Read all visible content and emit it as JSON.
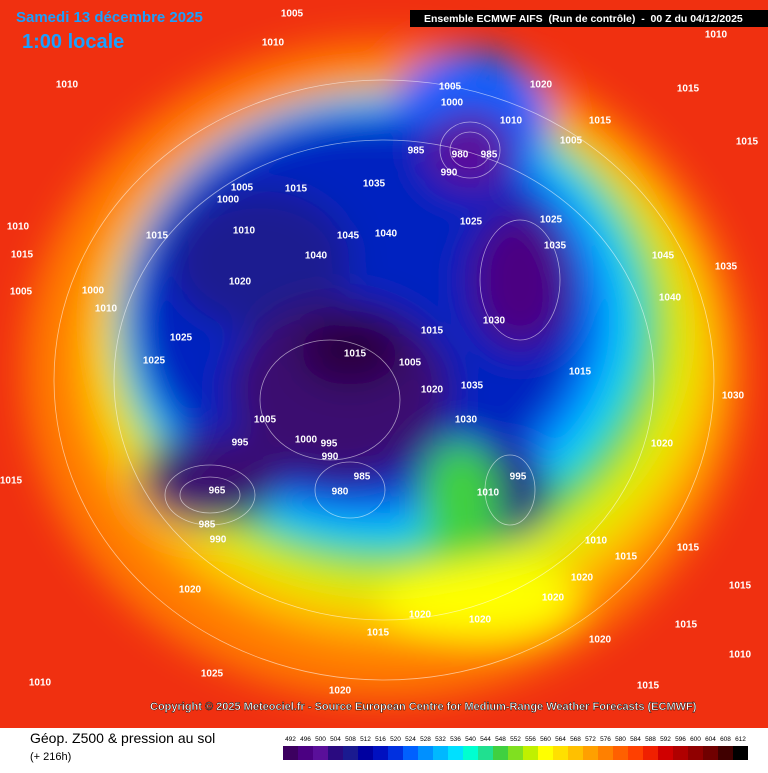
{
  "header": {
    "date": "Samedi 13 décembre 2025",
    "time": "1:00 locale",
    "run": "Ensemble ECMWF AIFS  (Run de contrôle)  -  00 Z du 04/12/2025"
  },
  "copyright": "Copyright © 2025 Meteociel.fr - Source European Centre for Medium-Range Weather Forecasts (ECMWF)",
  "footer": {
    "title": "Géop. Z500 & pression au sol",
    "lead": "(+ 216h)"
  },
  "colorbar": {
    "ticks": [
      492,
      496,
      500,
      504,
      508,
      512,
      516,
      520,
      524,
      528,
      532,
      536,
      540,
      544,
      548,
      552,
      556,
      560,
      564,
      568,
      572,
      576,
      580,
      584,
      588,
      592,
      596,
      600,
      604,
      608,
      612
    ],
    "colors": [
      "#3c0060",
      "#4b0082",
      "#5a0f9a",
      "#2a0a80",
      "#1a1a90",
      "#0000a0",
      "#0010c0",
      "#0030e0",
      "#0060ff",
      "#0090ff",
      "#00b8ff",
      "#00e0ff",
      "#00ffd0",
      "#20e090",
      "#40d040",
      "#80e020",
      "#c0f000",
      "#ffff00",
      "#ffe000",
      "#ffc000",
      "#ffa000",
      "#ff8000",
      "#ff6000",
      "#ff4000",
      "#f02000",
      "#d00000",
      "#b00000",
      "#900000",
      "#700000",
      "#400000",
      "#000000"
    ]
  },
  "isobar_labels": [
    "1005",
    "1010",
    "1010",
    "1010",
    "1015",
    "1015",
    "1020",
    "1005",
    "1000",
    "1010",
    "1005",
    "1015",
    "985",
    "980",
    "985",
    "990",
    "1035",
    "1005",
    "1000",
    "1015",
    "1010",
    "1045",
    "1040",
    "1040",
    "1025",
    "1025",
    "1035",
    "1010",
    "1015",
    "1015",
    "1005",
    "1000",
    "1010",
    "1020",
    "1025",
    "1025",
    "1015",
    "1030",
    "1005",
    "1015",
    "1020",
    "1035",
    "1030",
    "1015",
    "1045",
    "1040",
    "1035",
    "1030",
    "1020",
    "1000",
    "995",
    "990",
    "1005",
    "995",
    "985",
    "980",
    "965",
    "985",
    "990",
    "995",
    "1010",
    "1015",
    "1010",
    "1015",
    "1020",
    "1020",
    "1015",
    "1020",
    "1020",
    "1020",
    "1020",
    "1025",
    "1010",
    "1020",
    "1015",
    "1015",
    "1010",
    "1015",
    "1015"
  ]
}
